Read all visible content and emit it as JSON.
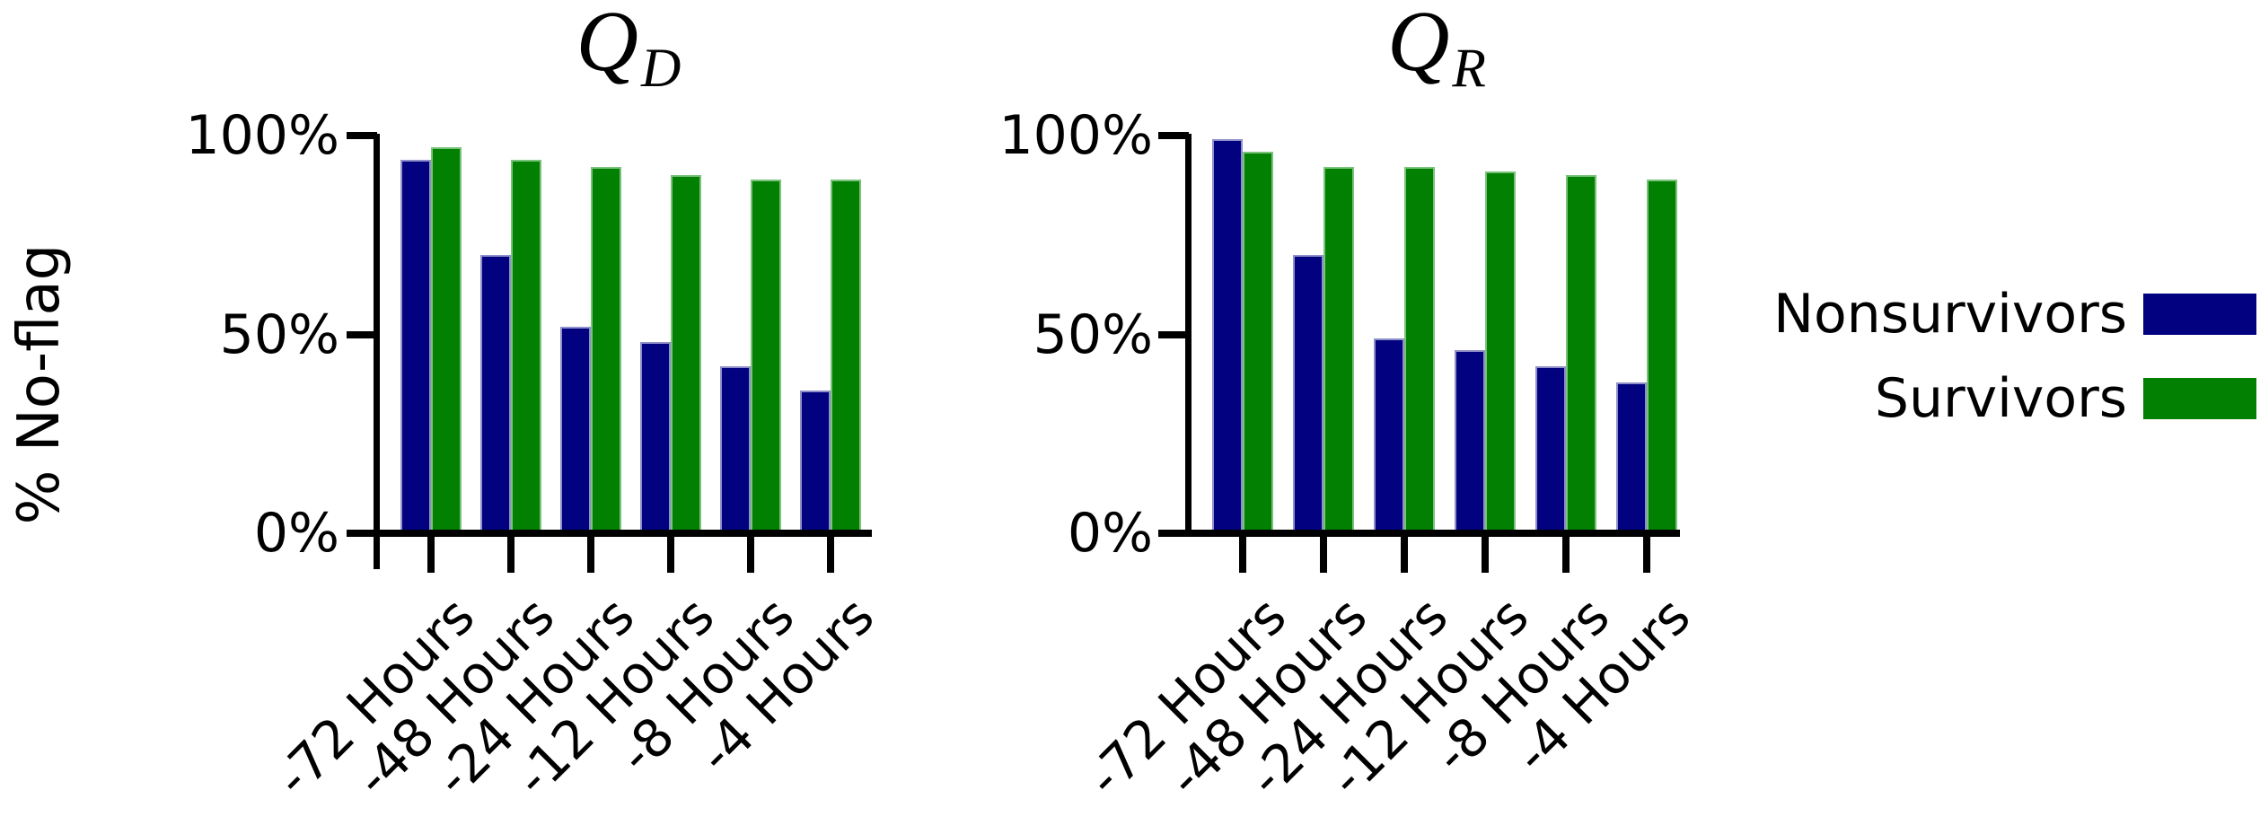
{
  "figure": {
    "ylabel": "% No-flag",
    "colors": {
      "nonsurvivors": "#020280",
      "nonsurvivors_edge": "#8f8fc9",
      "survivors": "#028002",
      "survivors_edge": "#79c279",
      "axis": "#000000",
      "background": "#ffffff"
    },
    "legend": {
      "position": "right-outside",
      "items": [
        {
          "label": "Nonsurvivors",
          "series": "nonsurvivors"
        },
        {
          "label": "Survivors",
          "series": "survivors"
        }
      ]
    }
  },
  "chart_data": [
    {
      "type": "bar",
      "title": "Q",
      "title_sub": "D",
      "categories": [
        "-72 Hours",
        "-48 Hours",
        "-24 Hours",
        "-12 Hours",
        "-8 Hours",
        "-4 Hours"
      ],
      "series": [
        {
          "name": "Nonsurvivors",
          "color_key": "nonsurvivors",
          "values": [
            94,
            70,
            52,
            48,
            42,
            36
          ]
        },
        {
          "name": "Survivors",
          "color_key": "survivors",
          "values": [
            97,
            94,
            92,
            90,
            89,
            89
          ]
        }
      ],
      "ylabel": "% No-flag",
      "xlabel": "",
      "ylim": [
        0,
        100
      ],
      "yticks": [
        {
          "label": "0%",
          "value": 0
        },
        {
          "label": "50%",
          "value": 50
        },
        {
          "label": "100%",
          "value": 100
        }
      ],
      "grid": false
    },
    {
      "type": "bar",
      "title": "Q",
      "title_sub": "R",
      "categories": [
        "-72 Hours",
        "-48 Hours",
        "-24 Hours",
        "-12 Hours",
        "-8 Hours",
        "-4 Hours"
      ],
      "series": [
        {
          "name": "Nonsurvivors",
          "color_key": "nonsurvivors",
          "values": [
            99,
            70,
            49,
            46,
            42,
            38
          ]
        },
        {
          "name": "Survivors",
          "color_key": "survivors",
          "values": [
            96,
            92,
            92,
            91,
            90,
            89
          ]
        }
      ],
      "ylabel": "% No-flag",
      "xlabel": "",
      "ylim": [
        0,
        100
      ],
      "yticks": [
        {
          "label": "0%",
          "value": 0
        },
        {
          "label": "50%",
          "value": 50
        },
        {
          "label": "100%",
          "value": 100
        }
      ],
      "grid": false
    }
  ]
}
